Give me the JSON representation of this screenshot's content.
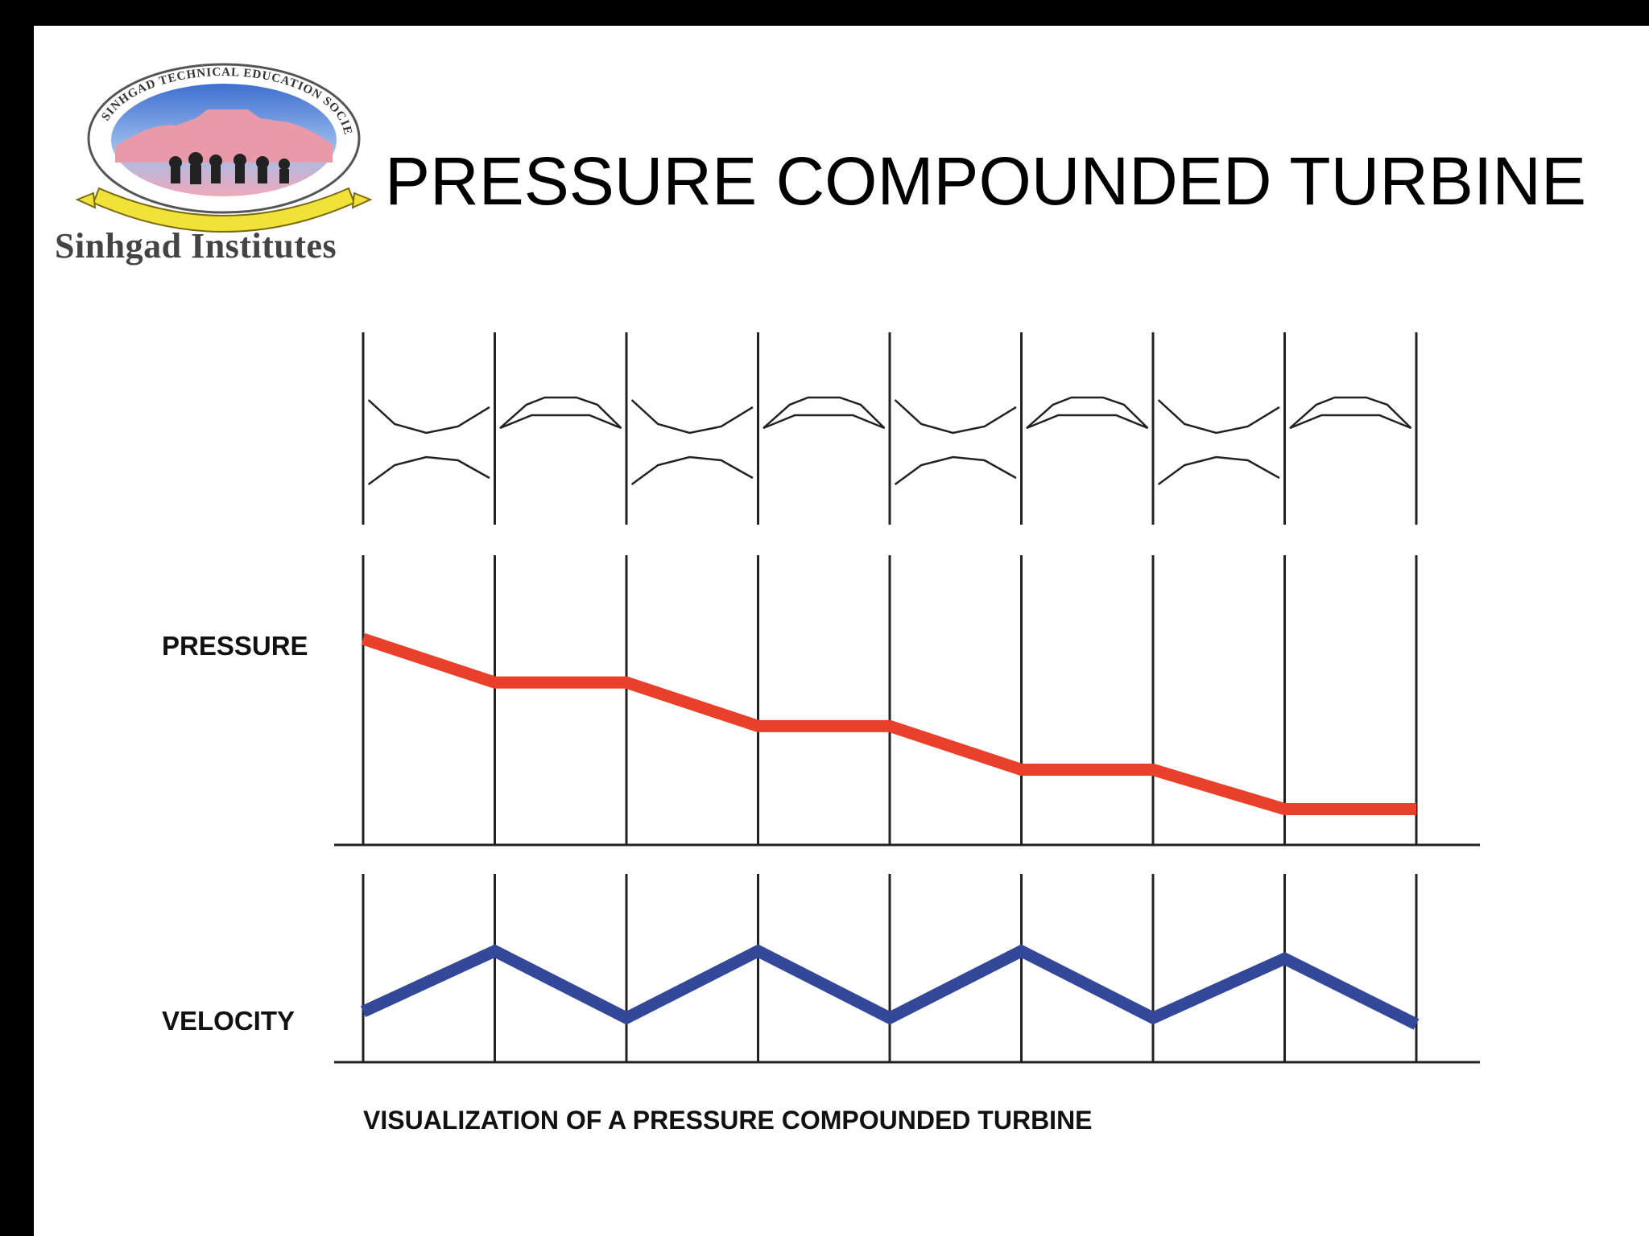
{
  "title": "PRESSURE COMPOUNDED TURBINE",
  "logo": {
    "name": "Sinhgad Institutes",
    "seal_text": "SINHGAD TECHNICAL EDUCATION SOCIETY, PUNE"
  },
  "diagram": {
    "stages": [
      {
        "kind": "nozzle"
      },
      {
        "kind": "blade"
      },
      {
        "kind": "nozzle"
      },
      {
        "kind": "blade"
      },
      {
        "kind": "nozzle"
      },
      {
        "kind": "blade"
      },
      {
        "kind": "nozzle"
      },
      {
        "kind": "blade"
      }
    ],
    "pressure": {
      "label": "PRESSURE",
      "color": "#e8402a",
      "values": [
        1.0,
        0.79,
        0.79,
        0.58,
        0.58,
        0.37,
        0.37,
        0.18,
        0.18
      ]
    },
    "velocity": {
      "label": "VELOCITY",
      "color": "#34489a",
      "values": [
        0.4,
        0.88,
        0.35,
        0.88,
        0.35,
        0.88,
        0.35,
        0.82,
        0.3
      ]
    },
    "caption": "VISUALIZATION OF A PRESSURE COMPOUNDED TURBINE"
  }
}
